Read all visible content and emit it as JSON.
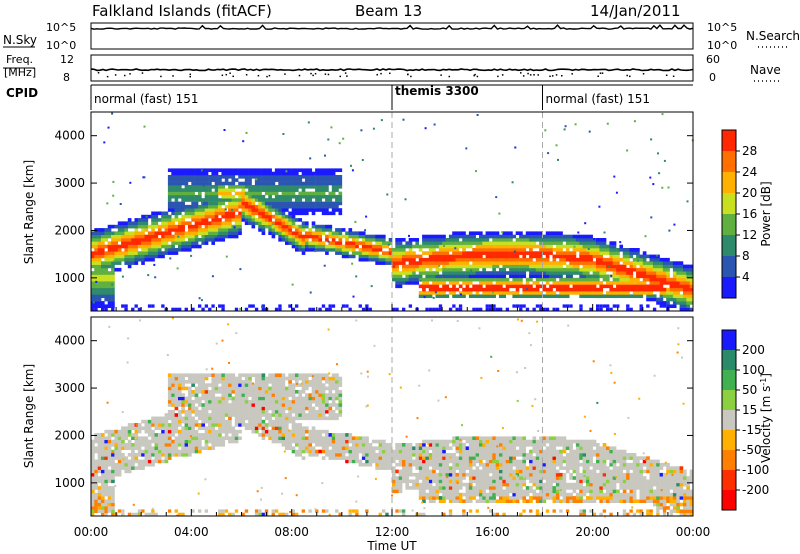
{
  "header": {
    "station": "Falkland Islands (fitACF)",
    "beam": "Beam 13",
    "date": "14/Jan/2011"
  },
  "strip_labels": {
    "nsky": "N.Sky",
    "nsearch": "N.Search",
    "freq": "Freq.",
    "freq_unit": "[MHz]",
    "nave": "Nave",
    "cpid": "CPID",
    "noise_ticks_left": [
      "10^5",
      "10^0"
    ],
    "noise_ticks_right": [
      "10^5",
      "10^0"
    ],
    "freq_ticks": [
      "12",
      "8"
    ],
    "nave_ticks": [
      "60",
      "0"
    ]
  },
  "cpid_segments": [
    {
      "label": "normal (fast) 151",
      "start_hour": 0
    },
    {
      "label": "themis 3300",
      "start_hour": 12
    },
    {
      "label": "normal (fast) 151",
      "start_hour": 18
    }
  ],
  "chart_data": [
    {
      "type": "heatmap",
      "name": "power",
      "ylabel": "Slant Range [km]",
      "xlabel": "Time UT",
      "x_ticks": [
        "00:00",
        "04:00",
        "08:00",
        "12:00",
        "16:00",
        "20:00",
        "00:00"
      ],
      "y_ticks": [
        1000,
        2000,
        3000,
        4000
      ],
      "ylim": [
        300,
        4500
      ],
      "xlim_hours": [
        0,
        24
      ],
      "colorbar_label": "Power [dB]",
      "colorbar_ticks": [
        4,
        8,
        12,
        16,
        20,
        24,
        28
      ],
      "colors": [
        "#1a1aff",
        "#2a55b0",
        "#2e8a6a",
        "#5fb040",
        "#c8e020",
        "#ffb000",
        "#ff7000",
        "#ff2800"
      ]
    },
    {
      "type": "heatmap",
      "name": "velocity",
      "ylabel": "Slant Range [km]",
      "xlabel": "Time UT",
      "x_ticks": [
        "00:00",
        "04:00",
        "08:00",
        "12:00",
        "16:00",
        "20:00",
        "00:00"
      ],
      "y_ticks": [
        1000,
        2000,
        3000,
        4000
      ],
      "ylim": [
        300,
        4500
      ],
      "xlim_hours": [
        0,
        24
      ],
      "colorbar_label": "Velocity [m s",
      "colorbar_label_sup": "-1",
      "colorbar_ticks": [
        200,
        100,
        50,
        15,
        -15,
        -50,
        -100,
        -200
      ],
      "colors": [
        "#1a1aff",
        "#2a8a6a",
        "#40b050",
        "#8ad040",
        "#c8c8c0",
        "#ffb000",
        "#ff8000",
        "#ff3000",
        "#ff0000"
      ]
    }
  ]
}
